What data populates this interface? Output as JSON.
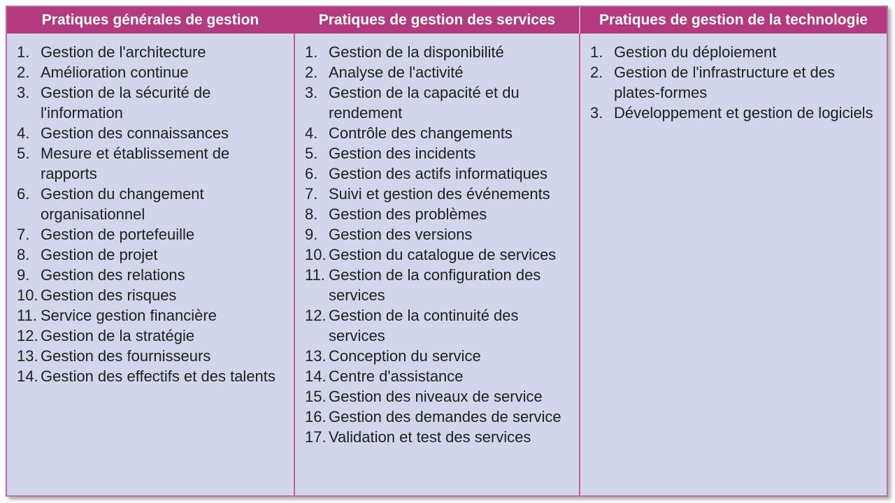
{
  "colors": {
    "header_bg": "#b43a7f",
    "body_bg": "#d2d5eb",
    "outer_border": "#bc6ca8",
    "divider": "#c75d9f",
    "header_divider_light": "#d29fc3",
    "header_text": "#ffffff",
    "item_text": "#202020"
  },
  "table": {
    "columns": [
      {
        "header": "Pratiques générales de gestion",
        "items": [
          {
            "num": "1.",
            "text": "Gestion de l'architecture"
          },
          {
            "num": "2.",
            "text": "Amélioration continue"
          },
          {
            "num": "3.",
            "text": "Gestion de la sécurité de l'information"
          },
          {
            "num": "4.",
            "text": "Gestion des connaissances"
          },
          {
            "num": "5.",
            "text": "Mesure et établissement de rapports"
          },
          {
            "num": "6.",
            "text": "Gestion du changement organisationnel"
          },
          {
            "num": "7.",
            "text": "Gestion de portefeuille"
          },
          {
            "num": "8.",
            "text": "Gestion de projet"
          },
          {
            "num": "9.",
            "text": "Gestion des relations"
          },
          {
            "num": "10.",
            "text": "Gestion des risques"
          },
          {
            "num": "11.",
            "text": "Service gestion financière"
          },
          {
            "num": "12.",
            "text": "Gestion de la stratégie"
          },
          {
            "num": "13.",
            "text": "Gestion des fournisseurs"
          },
          {
            "num": "14.",
            "text": "Gestion des effectifs et des talents"
          }
        ]
      },
      {
        "header": "Pratiques de gestion des services",
        "items": [
          {
            "num": "1.",
            "text": "Gestion de la disponibilité"
          },
          {
            "num": "2.",
            "text": "Analyse de l'activité"
          },
          {
            "num": "3.",
            "text": "Gestion de la capacité et du rendement"
          },
          {
            "num": "4.",
            "text": "Contrôle des changements"
          },
          {
            "num": "5.",
            "text": "Gestion des incidents"
          },
          {
            "num": "6.",
            "text": "Gestion des actifs informatiques"
          },
          {
            "num": "7.",
            "text": "Suivi et gestion des événements"
          },
          {
            "num": "8.",
            "text": "Gestion des problèmes"
          },
          {
            "num": "9.",
            "text": "Gestion des versions"
          },
          {
            "num": "10.",
            "text": "Gestion du catalogue de services"
          },
          {
            "num": "11.",
            "text": "Gestion de la configuration des services"
          },
          {
            "num": "12.",
            "text": "Gestion de la continuité des services"
          },
          {
            "num": "13.",
            "text": "Conception du service"
          },
          {
            "num": "14.",
            "text": "Centre d'assistance"
          },
          {
            "num": "15.",
            "text": "Gestion des niveaux de service"
          },
          {
            "num": "16.",
            "text": "Gestion des demandes de service"
          },
          {
            "num": "17.",
            "text": "Validation et test des services"
          }
        ]
      },
      {
        "header": "Pratiques de gestion de la technologie",
        "items": [
          {
            "num": "1.",
            "text": "Gestion du déploiement"
          },
          {
            "num": "2.",
            "text": "Gestion de l'infrastructure et des plates-formes"
          },
          {
            "num": "3.",
            "text": "Développement et gestion de logiciels"
          }
        ]
      }
    ]
  }
}
